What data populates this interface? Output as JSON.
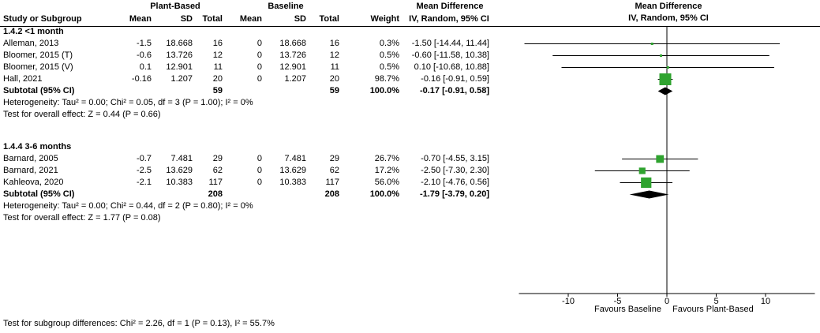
{
  "header": {
    "group1": "Plant-Based",
    "group2": "Baseline",
    "md_text_col": "Mean Difference",
    "md_plot_col": "Mean Difference",
    "study": "Study or Subgroup",
    "mean1": "Mean",
    "sd1": "SD",
    "total1": "Total",
    "mean2": "Mean",
    "sd2": "SD",
    "total2": "Total",
    "weight": "Weight",
    "ci": "IV, Random, 95% CI",
    "ci_plot": "IV, Random, 95% CI"
  },
  "chart_data": {
    "type": "forest",
    "effect_measure": "Mean Difference",
    "model": "IV, Random, 95% CI",
    "xlim": [
      -15,
      15
    ],
    "ticks": [
      -10,
      -5,
      0,
      5,
      10
    ],
    "favours_left": "Favours Baseline",
    "favours_right": "Favours Plant-Based",
    "square_color": "#2fa32f",
    "diamond_color": "#000000",
    "line_color": "#000000",
    "subgroups": [
      {
        "title": "1.4.2 <1 month",
        "studies": [
          {
            "name": "Alleman, 2013",
            "mean1": "-1.5",
            "sd1": "18.668",
            "total1": "16",
            "mean2": "0",
            "sd2": "18.668",
            "total2": "16",
            "weight_text": "0.3%",
            "weight": 0.3,
            "ci_text": "-1.50 [-14.44, 11.44]",
            "md": -1.5,
            "lo": -14.44,
            "hi": 11.44
          },
          {
            "name": "Bloomer, 2015 (T)",
            "mean1": "-0.6",
            "sd1": "13.726",
            "total1": "12",
            "mean2": "0",
            "sd2": "13.726",
            "total2": "12",
            "weight_text": "0.5%",
            "weight": 0.5,
            "ci_text": "-0.60 [-11.58, 10.38]",
            "md": -0.6,
            "lo": -11.58,
            "hi": 10.38
          },
          {
            "name": "Bloomer, 2015 (V)",
            "mean1": "0.1",
            "sd1": "12.901",
            "total1": "11",
            "mean2": "0",
            "sd2": "12.901",
            "total2": "11",
            "weight_text": "0.5%",
            "weight": 0.5,
            "ci_text": "0.10 [-10.68, 10.88]",
            "md": 0.1,
            "lo": -10.68,
            "hi": 10.88
          },
          {
            "name": "Hall, 2021",
            "mean1": "-0.16",
            "sd1": "1.207",
            "total1": "20",
            "mean2": "0",
            "sd2": "1.207",
            "total2": "20",
            "weight_text": "98.7%",
            "weight": 98.7,
            "ci_text": "-0.16 [-0.91, 0.59]",
            "md": -0.16,
            "lo": -0.91,
            "hi": 0.59
          }
        ],
        "subtotal": {
          "label": "Subtotal (95% CI)",
          "total1": "59",
          "total2": "59",
          "weight_text": "100.0%",
          "ci_text": "-0.17 [-0.91, 0.58]",
          "md": -0.17,
          "lo": -0.91,
          "hi": 0.58
        },
        "heterogeneity": "Heterogeneity: Tau² = 0.00; Chi² = 0.05, df = 3 (P = 1.00); I² = 0%",
        "overall_effect": "Test for overall effect: Z = 0.44 (P = 0.66)"
      },
      {
        "title": "1.4.4 3-6 months",
        "studies": [
          {
            "name": "Barnard, 2005",
            "mean1": "-0.7",
            "sd1": "7.481",
            "total1": "29",
            "mean2": "0",
            "sd2": "7.481",
            "total2": "29",
            "weight_text": "26.7%",
            "weight": 26.7,
            "ci_text": "-0.70 [-4.55, 3.15]",
            "md": -0.7,
            "lo": -4.55,
            "hi": 3.15
          },
          {
            "name": "Barnard, 2021",
            "mean1": "-2.5",
            "sd1": "13.629",
            "total1": "62",
            "mean2": "0",
            "sd2": "13.629",
            "total2": "62",
            "weight_text": "17.2%",
            "weight": 17.2,
            "ci_text": "-2.50 [-7.30, 2.30]",
            "md": -2.5,
            "lo": -7.3,
            "hi": 2.3
          },
          {
            "name": "Kahleova, 2020",
            "mean1": "-2.1",
            "sd1": "10.383",
            "total1": "117",
            "mean2": "0",
            "sd2": "10.383",
            "total2": "117",
            "weight_text": "56.0%",
            "weight": 56.0,
            "ci_text": "-2.10 [-4.76, 0.56]",
            "md": -2.1,
            "lo": -4.76,
            "hi": 0.56
          }
        ],
        "subtotal": {
          "label": "Subtotal (95% CI)",
          "total1": "208",
          "total2": "208",
          "weight_text": "100.0%",
          "ci_text": "-1.79 [-3.79, 0.20]",
          "md": -1.79,
          "lo": -3.79,
          "hi": 0.2
        },
        "heterogeneity": "Heterogeneity: Tau² = 0.00; Chi² = 0.44, df = 2 (P = 0.80); I² = 0%",
        "overall_effect": "Test for overall effect: Z = 1.77 (P = 0.08)"
      }
    ],
    "footer": "Test for subgroup differences: Chi² = 2.26, df = 1 (P = 0.13), I² = 55.7%"
  }
}
